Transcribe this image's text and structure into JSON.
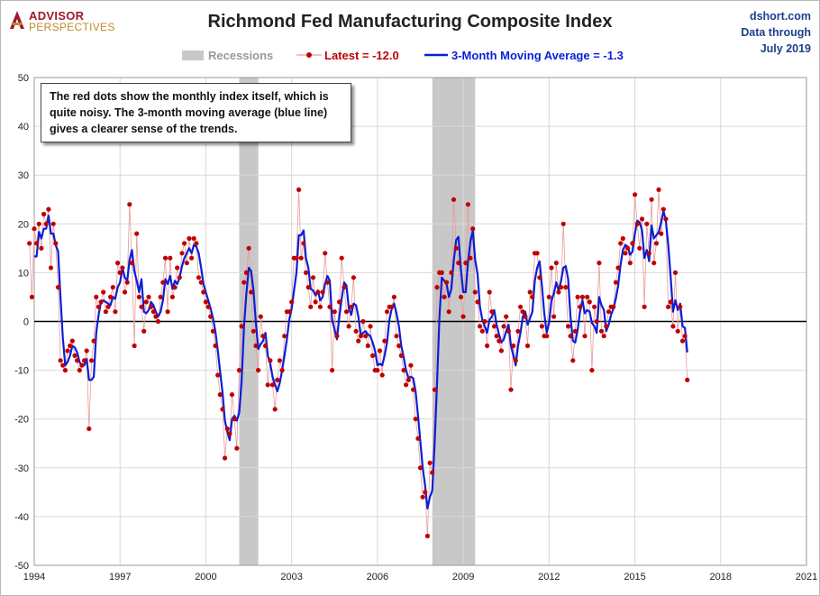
{
  "header": {
    "logo_line1": "ADVISOR",
    "logo_line2": "PERSPECTIVES",
    "title": "Richmond Fed Manufacturing Composite Index",
    "source_lines": [
      "dshort.com",
      "Data through",
      "July 2019"
    ]
  },
  "annotation": "The red dots show the monthly  index itself, which is quite noisy. The 3-month moving average (blue line) gives a clearer sense of the trends.",
  "colors": {
    "latest": "#c00000",
    "moving_average": "#0a1fd6",
    "recession": "#c8c8c8",
    "zero_line": "#000000"
  },
  "chart_data": {
    "type": "line",
    "title": "Richmond Fed Manufacturing Composite Index",
    "xlim": [
      1994,
      2021
    ],
    "ylim": [
      -50,
      50
    ],
    "x_ticks": [
      "1994",
      "1997",
      "2000",
      "2003",
      "2006",
      "2009",
      "2012",
      "2015",
      "2018",
      "2021"
    ],
    "y_ticks": [
      "50",
      "40",
      "30",
      "20",
      "10",
      "0",
      "-10",
      "-20",
      "-30",
      "-40",
      "-50"
    ],
    "grid": true,
    "legend": {
      "placement": "top",
      "recessions_label": "Recessions",
      "latest_label": "Latest = -12.0",
      "ma_label": "3-Month Moving Average = -1.3"
    },
    "recessions": [
      [
        "2001-03",
        "2001-11"
      ],
      [
        "2007-12",
        "2009-06"
      ]
    ],
    "start": "1993-11",
    "series": [
      {
        "name": "Latest = -12.0",
        "values": [
          16,
          5,
          19,
          16,
          20,
          15,
          22,
          20,
          23,
          11,
          20,
          16,
          7,
          -8,
          -9,
          -10,
          -6,
          -5,
          -4,
          -7,
          -8,
          -10,
          -9,
          -8,
          -6,
          -22,
          -8,
          -4,
          5,
          3,
          4,
          6,
          2,
          3,
          5,
          7,
          2,
          12,
          10,
          11,
          6,
          8,
          24,
          12,
          -5,
          18,
          5,
          3,
          -2,
          4,
          5,
          3,
          2,
          1,
          0,
          5,
          8,
          13,
          2,
          13,
          5,
          7,
          11,
          9,
          14,
          16,
          12,
          17,
          13,
          17,
          16,
          9,
          8,
          6,
          4,
          3,
          1,
          -2,
          -5,
          -11,
          -15,
          -18,
          -28,
          -22,
          -23,
          -15,
          -20,
          -26,
          -10,
          -1,
          8,
          10,
          15,
          6,
          -2,
          -5,
          -10,
          1,
          -3,
          -5,
          -13,
          -8,
          -13,
          -18,
          -12,
          -8,
          -10,
          -3,
          2,
          2,
          4,
          13,
          13,
          27,
          13,
          16,
          10,
          7,
          3,
          9,
          4,
          6,
          3,
          6,
          14,
          8,
          3,
          -10,
          2,
          -3,
          4,
          13,
          7,
          2,
          -1,
          3,
          9,
          -2,
          -4,
          -3,
          0,
          -3,
          -5,
          -1,
          -7,
          -10,
          -10,
          -6,
          -11,
          -4,
          2,
          3,
          3,
          5,
          -3,
          -5,
          -7,
          -10,
          -13,
          -12,
          -9,
          -14,
          -20,
          -24,
          -30,
          -36,
          -35,
          -44,
          -29,
          -31,
          -14,
          7,
          10,
          10,
          5,
          8,
          2,
          10,
          25,
          15,
          12,
          5,
          1,
          12,
          24,
          13,
          19,
          6,
          4,
          -1,
          -2,
          0,
          -5,
          6,
          2,
          -1,
          -3,
          -4,
          -6,
          -1,
          1,
          -2,
          -14,
          -5,
          -8,
          -2,
          3,
          2,
          1,
          -5,
          6,
          5,
          14,
          14,
          9,
          -1,
          -3,
          -3,
          5,
          11,
          1,
          12,
          6,
          7,
          20,
          7,
          -1,
          -3,
          -8,
          -2,
          5,
          3,
          5,
          -3,
          5,
          4,
          -10,
          3,
          0,
          12,
          -2,
          -3,
          -1,
          2,
          3,
          3,
          8,
          11,
          16,
          17,
          14,
          15,
          12,
          16,
          26,
          20,
          15,
          21,
          3,
          20,
          14,
          25,
          12,
          16,
          27,
          18,
          23,
          21,
          3,
          4,
          -1,
          10,
          -2,
          3,
          -4,
          -3,
          -12
        ]
      },
      {
        "name": "3-Month Moving Average = -1.3"
      }
    ]
  }
}
